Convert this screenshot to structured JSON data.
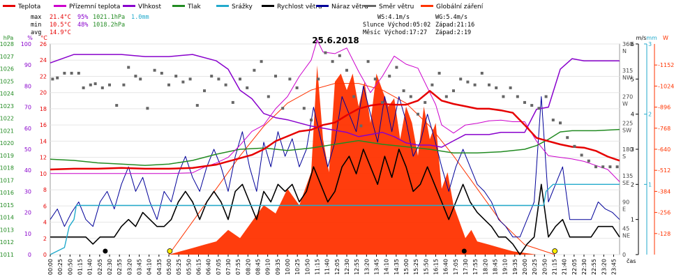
{
  "chart_data": {
    "type": "line",
    "title": "25.6.2018",
    "legend": {
      "position": "top",
      "items": [
        {
          "label": "Teplota",
          "color": "#e60000"
        },
        {
          "label": "Přízemní teplota",
          "color": "#cc00cc"
        },
        {
          "label": "Vlhkost",
          "color": "#8800cc"
        },
        {
          "label": "Tlak",
          "color": "#228B22"
        },
        {
          "label": "Srážky",
          "color": "#22aacc"
        },
        {
          "label": "Rychlost větru",
          "color": "#000000"
        },
        {
          "label": "Náraz větru",
          "color": "#000099"
        },
        {
          "label": "Směr větru",
          "color": "#666666"
        },
        {
          "label": "Globální záření",
          "color": "#ff3300"
        }
      ]
    },
    "stats": {
      "max_label": "max",
      "max_temp": "21.4°C",
      "max_hum": "95%",
      "max_press": "1021.1hPa",
      "max_rain": "1.0mm",
      "min_label": "min",
      "min_temp": "10.5°C",
      "min_hum": "48%",
      "min_press": "1018.2hPa",
      "avg_label": "avg",
      "avg_temp": "14.9°C",
      "ws": "WS:4.1m/s",
      "wg": "WG:5.4m/s",
      "sun": "Slunce Východ:05:02",
      "sun_set": "Západ:21:16",
      "moon": "Měsíc  Východ:17:27",
      "moon_set": "Západ:2:19"
    },
    "axes": {
      "hpa": {
        "label": "hPa",
        "range": [
          1011,
          1028
        ],
        "ticks": [
          1011,
          1012,
          1013,
          1014,
          1015,
          1016,
          1017,
          1018,
          1019,
          1020,
          1021,
          1022,
          1023,
          1024,
          1025,
          1026,
          1027,
          1028
        ]
      },
      "pct": {
        "label": "%",
        "range": [
          0,
          100
        ],
        "ticks": [
          0,
          10,
          20,
          30,
          40,
          50,
          60,
          70,
          80,
          90,
          100
        ]
      },
      "temp": {
        "label": "°C",
        "range": [
          0,
          26
        ],
        "ticks": [
          0,
          2,
          4,
          6,
          8,
          10,
          12,
          14,
          16,
          18,
          20,
          22,
          24,
          26
        ]
      },
      "dir": {
        "label": "m/s",
        "range": [
          0,
          360
        ],
        "ticks": [
          {
            "v": 360,
            "t": "360",
            "s": "N"
          },
          {
            "v": 315,
            "t": "315",
            "s": "NW"
          },
          {
            "v": 270,
            "t": "270",
            "s": "W"
          },
          {
            "v": 225,
            "t": "225",
            "s": "SW"
          },
          {
            "v": 180,
            "t": "180",
            "s": "S"
          },
          {
            "v": 135,
            "t": "135",
            "s": "SE"
          },
          {
            "v": 90,
            "t": "90",
            "s": "E"
          },
          {
            "v": 45,
            "t": "45",
            "s": "NE"
          },
          {
            "v": 0,
            "t": "0",
            "s": ""
          }
        ]
      },
      "wind": {
        "range": [
          0,
          6
        ],
        "ticks": [
          0,
          1,
          2,
          3,
          4,
          5,
          6
        ]
      },
      "rain": {
        "label": "mm",
        "range": [
          0,
          3
        ],
        "ticks": [
          1,
          2,
          3
        ]
      },
      "rad": {
        "label": "W",
        "range": [
          0,
          1280
        ],
        "ticks": [
          128,
          256,
          384,
          512,
          640,
          768,
          896,
          1024,
          1152
        ]
      },
      "x_label": "čas",
      "x_ticks": [
        "00:00",
        "00:25",
        "00:50",
        "01:15",
        "01:40",
        "02:05",
        "02:30",
        "02:55",
        "03:20",
        "03:45",
        "04:10",
        "04:35",
        "05:00",
        "05:25",
        "05:50",
        "06:15",
        "06:40",
        "07:05",
        "07:30",
        "07:55",
        "08:20",
        "08:45",
        "09:10",
        "09:35",
        "10:00",
        "10:25",
        "10:50",
        "11:15",
        "11:40",
        "12:05",
        "12:30",
        "12:55",
        "13:20",
        "13:45",
        "14:10",
        "14:35",
        "15:00",
        "15:25",
        "15:50",
        "16:15",
        "16:40",
        "17:05",
        "17:30",
        "17:55",
        "18:20",
        "18:45",
        "19:10",
        "19:35",
        "20:00",
        "20:25",
        "20:50",
        "21:15",
        "21:40",
        "22:05",
        "22:30",
        "22:55",
        "23:20",
        "23:45"
      ]
    },
    "series": [
      {
        "name": "Teplota",
        "axis": "temp",
        "t": [
          0,
          1,
          2,
          3,
          4,
          5,
          6,
          6.5,
          7,
          7.5,
          8,
          8.5,
          9,
          9.5,
          10,
          10.5,
          11,
          11.5,
          12,
          12.5,
          13,
          13.5,
          14,
          14.5,
          15,
          15.5,
          16,
          16.5,
          17,
          17.5,
          18,
          18.5,
          19,
          19.5,
          20,
          20.5,
          21,
          21.5,
          22,
          22.5,
          23,
          23.5,
          24
        ],
        "v": [
          10.5,
          10.6,
          10.6,
          10.7,
          10.6,
          10.6,
          10.7,
          10.9,
          11.1,
          11.5,
          11.9,
          12.3,
          13.0,
          14.0,
          14.6,
          15.2,
          15.4,
          16.0,
          16.3,
          17.2,
          18.0,
          18.4,
          18.6,
          18.5,
          18.5,
          19.0,
          20.2,
          19.0,
          18.6,
          18.3,
          18.0,
          18.0,
          17.8,
          17.5,
          16.0,
          14.4,
          14.0,
          13.6,
          13.3,
          13.2,
          12.8,
          12.1,
          11.6
        ]
      },
      {
        "name": "Přízemní teplota",
        "axis": "temp",
        "t": [
          0,
          1,
          2,
          3,
          4,
          5,
          6,
          6.5,
          7,
          7.5,
          8,
          8.5,
          9,
          9.5,
          10,
          10.5,
          11,
          11.25,
          11.5,
          12,
          12.5,
          13,
          13.5,
          14,
          14.5,
          15,
          15.5,
          16,
          16.25,
          16.5,
          17,
          17.5,
          18,
          18.5,
          19,
          19.5,
          20,
          20.5,
          21,
          21.5,
          22,
          22.5,
          23,
          23.5,
          24
        ],
        "v": [
          10.0,
          10.0,
          10.0,
          10.0,
          10.0,
          10.0,
          10.1,
          10.8,
          11.3,
          12.0,
          13.5,
          15.2,
          16.0,
          18.0,
          19.5,
          22.0,
          24.0,
          26.5,
          25.0,
          24.8,
          25.5,
          22.6,
          20.0,
          22.0,
          24.5,
          23.5,
          23.0,
          20.0,
          18.5,
          16.0,
          15.0,
          16.0,
          16.2,
          16.5,
          16.6,
          16.4,
          16.4,
          14.0,
          12.2,
          12.0,
          11.8,
          11.5,
          11.0,
          10.5,
          9.0
        ]
      },
      {
        "name": "Vlhkost",
        "axis": "pct",
        "t": [
          0,
          1,
          2,
          3,
          4,
          5,
          6,
          7,
          7.5,
          8,
          8.5,
          9,
          9.5,
          10,
          11,
          12,
          12.5,
          13,
          14,
          14.5,
          15,
          15.5,
          16,
          16.5,
          17,
          17.5,
          18,
          18.5,
          19,
          19.5,
          20,
          20.5,
          21,
          21.5,
          22,
          22.5,
          23,
          24
        ],
        "v": [
          91,
          95,
          95,
          95,
          94,
          94,
          95,
          92,
          88,
          78,
          74,
          67,
          65,
          64,
          61,
          59,
          58,
          56,
          58,
          56,
          53,
          52,
          52,
          51,
          54,
          57,
          57,
          57,
          58,
          58,
          58,
          69,
          70,
          88,
          93,
          92,
          92,
          92
        ]
      },
      {
        "name": "Tlak",
        "axis": "hpa",
        "t": [
          0,
          1,
          2,
          3,
          4,
          5,
          6,
          7,
          8,
          9,
          10,
          11,
          12,
          13,
          14,
          15,
          16,
          17,
          18,
          19,
          20,
          20.5,
          21,
          21.5,
          22,
          23,
          24
        ],
        "v": [
          1018.7,
          1018.6,
          1018.4,
          1018.3,
          1018.2,
          1018.3,
          1018.6,
          1019.1,
          1019.5,
          1019.6,
          1019.4,
          1019.6,
          1019.9,
          1020.2,
          1019.9,
          1019.7,
          1019.5,
          1019.2,
          1019.2,
          1019.3,
          1019.5,
          1019.8,
          1020.3,
          1020.9,
          1021.0,
          1021.0,
          1021.1
        ]
      },
      {
        "name": "Srážky",
        "axis": "rain",
        "t": [
          0,
          0.6,
          0.8,
          1.0,
          1.1,
          19.5,
          20.8,
          20.9,
          21.2,
          24
        ],
        "v": [
          0.0,
          0.1,
          0.4,
          0.5,
          0.7,
          0.7,
          0.7,
          0.9,
          1.0,
          1.0
        ]
      },
      {
        "name": "Směr větru",
        "axis": "dir",
        "t": [
          0.1,
          0.3,
          0.6,
          0.9,
          1.2,
          1.4,
          1.7,
          1.9,
          2.2,
          2.5,
          2.8,
          3.1,
          3.3,
          3.6,
          3.8,
          4.1,
          4.4,
          4.7,
          5.0,
          5.3,
          5.6,
          5.9,
          6.2,
          6.5,
          6.8,
          7.1,
          7.4,
          7.7,
          8.0,
          8.3,
          8.6,
          8.9,
          9.2,
          9.5,
          9.8,
          10.1,
          10.4,
          10.7,
          11.0,
          11.3,
          11.6,
          11.9,
          12.2,
          12.5,
          12.8,
          13.1,
          13.4,
          13.7,
          14.0,
          14.3,
          14.6,
          14.9,
          15.2,
          15.5,
          15.8,
          16.1,
          16.4,
          16.7,
          17.0,
          17.3,
          17.6,
          17.9,
          18.2,
          18.5,
          18.8,
          19.1,
          19.4,
          19.7,
          20.0,
          20.3,
          20.6,
          20.9,
          21.2,
          21.5,
          21.8,
          22.1,
          22.4,
          22.7,
          23.0,
          23.3,
          23.6,
          23.9
        ],
        "v": [
          300,
          302,
          310,
          310,
          310,
          285,
          290,
          292,
          285,
          290,
          255,
          290,
          320,
          305,
          300,
          250,
          315,
          310,
          290,
          305,
          295,
          300,
          255,
          280,
          305,
          300,
          290,
          260,
          300,
          285,
          315,
          330,
          270,
          305,
          250,
          300,
          285,
          250,
          230,
          300,
          345,
          330,
          340,
          315,
          270,
          220,
          330,
          300,
          260,
          305,
          320,
          280,
          270,
          240,
          260,
          290,
          310,
          270,
          280,
          300,
          295,
          290,
          310,
          290,
          285,
          270,
          285,
          270,
          260,
          255,
          250,
          270,
          230,
          225,
          200,
          185,
          170,
          160,
          150,
          150,
          150,
          150
        ]
      }
    ],
    "wind_speed": {
      "name": "Rychlost větru",
      "axis": "wind",
      "t": [
        0,
        0.3,
        0.6,
        0.9,
        1.2,
        1.5,
        1.8,
        2.1,
        2.4,
        2.7,
        3.0,
        3.3,
        3.6,
        3.9,
        4.2,
        4.5,
        4.8,
        5.1,
        5.4,
        5.7,
        6.0,
        6.3,
        6.6,
        6.9,
        7.2,
        7.5,
        7.8,
        8.1,
        8.4,
        8.7,
        9.0,
        9.3,
        9.6,
        9.9,
        10.2,
        10.5,
        10.8,
        11.1,
        11.4,
        11.7,
        12.0,
        12.3,
        12.6,
        12.9,
        13.2,
        13.5,
        13.8,
        14.1,
        14.4,
        14.7,
        15.0,
        15.3,
        15.6,
        15.9,
        16.2,
        16.5,
        16.8,
        17.1,
        17.4,
        17.7,
        18.0,
        18.3,
        18.6,
        18.9,
        19.2,
        19.5,
        19.8,
        20.1,
        20.4,
        20.7,
        21.0,
        21.3,
        21.6,
        21.9,
        22.2,
        22.5,
        22.8,
        23.1,
        23.4,
        23.7,
        24
      ],
      "v": [
        0.5,
        0.5,
        0.5,
        0.5,
        0.5,
        0.5,
        0.3,
        0.5,
        0.5,
        0.5,
        0.8,
        1.0,
        0.8,
        1.2,
        1.0,
        0.8,
        0.8,
        1.0,
        1.5,
        1.8,
        1.5,
        1.0,
        1.5,
        1.8,
        1.5,
        1.0,
        1.8,
        2.0,
        1.5,
        1.0,
        1.8,
        1.5,
        2.0,
        1.8,
        2.0,
        1.5,
        1.8,
        2.5,
        2.0,
        1.5,
        1.8,
        2.5,
        2.8,
        2.3,
        3.0,
        2.5,
        2.0,
        2.8,
        2.2,
        3.0,
        2.5,
        1.8,
        2.0,
        2.5,
        2.0,
        1.5,
        1.0,
        1.5,
        2.0,
        1.5,
        1.2,
        1.0,
        0.8,
        0.5,
        0.5,
        0.3,
        0.0,
        0.3,
        0.5,
        2.0,
        0.5,
        0.8,
        1.0,
        0.5,
        0.5,
        0.5,
        0.5,
        0.8,
        0.8,
        0.8,
        0.5
      ]
    },
    "wind_gust": {
      "name": "Náraz větru",
      "axis": "wind",
      "t": [
        0,
        0.3,
        0.6,
        0.9,
        1.2,
        1.5,
        1.8,
        2.1,
        2.4,
        2.7,
        3.0,
        3.3,
        3.6,
        3.9,
        4.2,
        4.5,
        4.8,
        5.1,
        5.4,
        5.7,
        6.0,
        6.3,
        6.6,
        6.9,
        7.2,
        7.5,
        7.8,
        8.1,
        8.4,
        8.7,
        9.0,
        9.3,
        9.6,
        9.9,
        10.2,
        10.5,
        10.8,
        11.1,
        11.4,
        11.7,
        12.0,
        12.3,
        12.6,
        12.9,
        13.2,
        13.5,
        13.8,
        14.1,
        14.4,
        14.7,
        15.0,
        15.3,
        15.6,
        15.9,
        16.2,
        16.5,
        16.8,
        17.1,
        17.4,
        17.7,
        18.0,
        18.3,
        18.6,
        18.9,
        19.2,
        19.5,
        19.8,
        20.1,
        20.4,
        20.7,
        21.0,
        21.3,
        21.6,
        21.9,
        22.2,
        22.5,
        22.8,
        23.1,
        23.4,
        23.7,
        24
      ],
      "v": [
        1.0,
        1.3,
        0.8,
        1.2,
        1.5,
        1.0,
        0.8,
        1.5,
        1.8,
        1.3,
        2.0,
        2.5,
        1.8,
        2.2,
        1.5,
        1.0,
        1.8,
        1.5,
        2.3,
        2.8,
        2.2,
        1.8,
        2.5,
        3.0,
        2.5,
        1.8,
        2.8,
        3.5,
        2.5,
        1.8,
        3.2,
        2.5,
        3.5,
        2.8,
        3.3,
        2.5,
        3.0,
        4.2,
        3.3,
        2.5,
        3.2,
        4.5,
        4.0,
        3.5,
        4.8,
        4.0,
        3.2,
        4.5,
        3.5,
        4.5,
        3.8,
        2.8,
        3.2,
        4.0,
        3.3,
        2.5,
        1.8,
        2.5,
        3.0,
        2.5,
        2.0,
        1.8,
        1.5,
        1.0,
        0.8,
        0.5,
        0.5,
        1.0,
        1.5,
        4.5,
        1.5,
        2.0,
        2.5,
        1.0,
        1.0,
        1.0,
        1.0,
        1.5,
        1.3,
        1.2,
        1.0
      ]
    },
    "radiation": {
      "name": "Globální záření",
      "axis": "rad",
      "t": [
        5.0,
        5.5,
        6.0,
        6.5,
        7.0,
        7.5,
        8.0,
        8.5,
        9.0,
        9.5,
        10.0,
        10.5,
        11.0,
        11.25,
        11.5,
        11.75,
        12.0,
        12.25,
        12.5,
        12.75,
        13.0,
        13.25,
        13.5,
        13.75,
        14.0,
        14.25,
        14.5,
        14.75,
        15.0,
        15.25,
        15.5,
        15.75,
        16.0,
        16.25,
        16.5,
        16.75,
        17.0,
        17.25,
        17.5,
        17.75,
        18.0,
        18.5,
        19.0,
        19.5,
        20.0,
        20.5
      ],
      "v": [
        0,
        20,
        40,
        60,
        80,
        150,
        100,
        200,
        300,
        250,
        400,
        300,
        500,
        1150,
        700,
        500,
        1050,
        1100,
        1000,
        1100,
        900,
        1050,
        800,
        1100,
        1000,
        900,
        950,
        700,
        900,
        800,
        600,
        900,
        700,
        800,
        400,
        500,
        300,
        200,
        100,
        150,
        80,
        60,
        40,
        20,
        10,
        0
      ]
    },
    "radiation_theory": {
      "t": [
        5.0,
        6,
        7,
        8,
        9,
        10,
        11,
        12,
        13,
        14,
        15,
        16,
        17,
        18,
        19,
        20,
        21.27
      ],
      "v": [
        0,
        200,
        400,
        600,
        780,
        920,
        1000,
        1040,
        1040,
        1000,
        920,
        780,
        600,
        400,
        200,
        60,
        0
      ]
    }
  }
}
